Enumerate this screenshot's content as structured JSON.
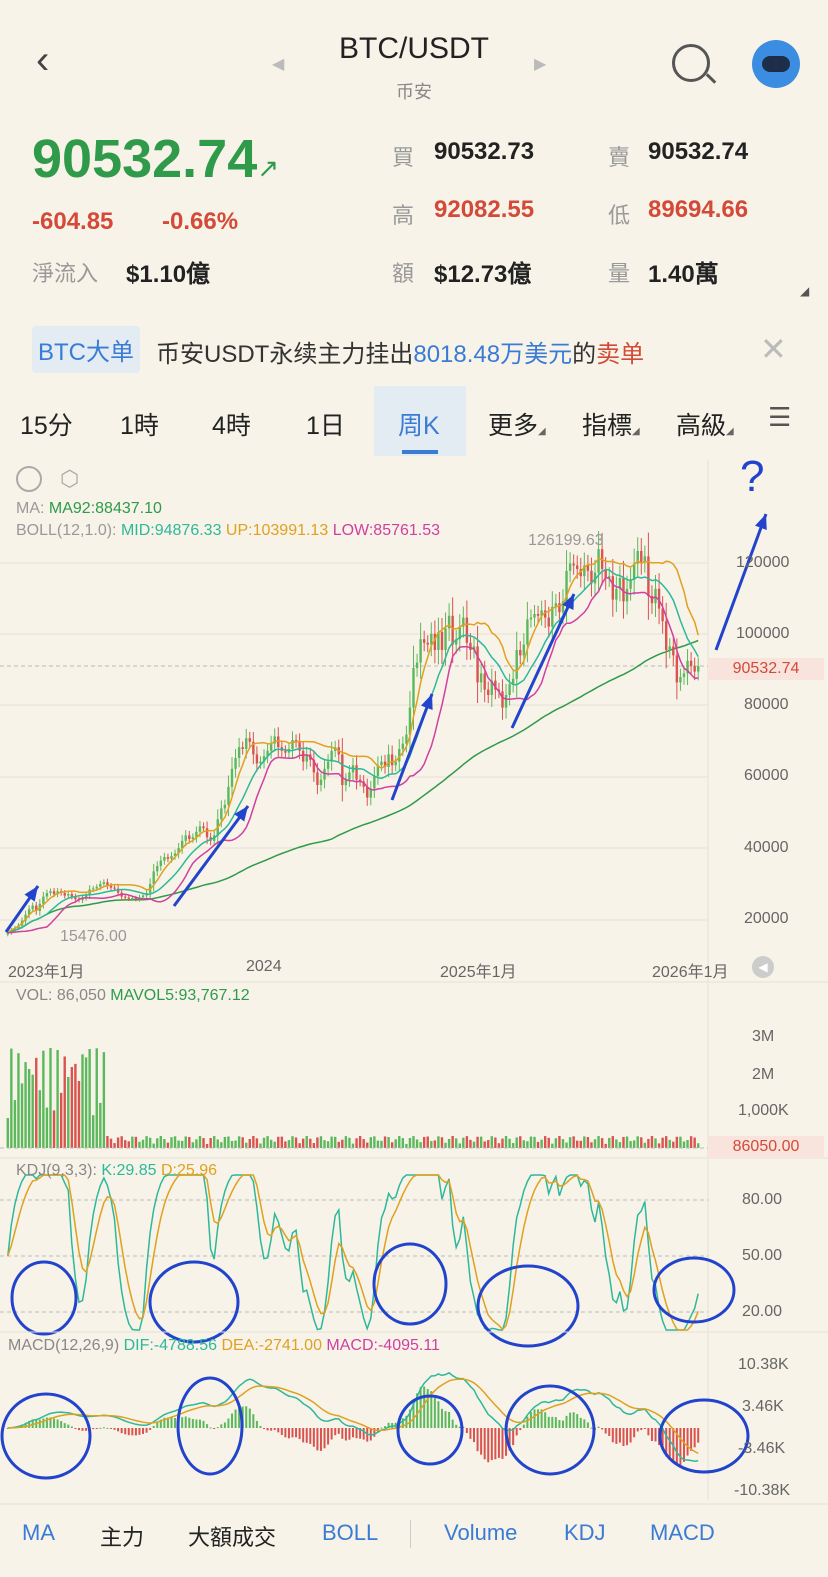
{
  "header": {
    "title": "BTC/USDT",
    "subtitle": "币安"
  },
  "ticker": {
    "price": "90532.74",
    "change": "-604.85",
    "change_pct": "-0.66%",
    "net_inflow_label": "淨流入",
    "net_inflow": "$1.10億",
    "bid_label": "買",
    "bid": "90532.73",
    "ask_label": "賣",
    "ask": "90532.74",
    "high_label": "高",
    "high": "92082.55",
    "low_label": "低",
    "low": "89694.66",
    "amount_label": "額",
    "amount": "$12.73億",
    "volume_label": "量",
    "volume": "1.40萬"
  },
  "banner": {
    "tag": "BTC大单",
    "text_a": "币安USDT永续主力挂出",
    "amount": "8018.48万美元",
    "text_b": "的",
    "side": "卖单"
  },
  "tabs": [
    "15分",
    "1時",
    "4時",
    "1日",
    "周K",
    "更多",
    "指標",
    "高級"
  ],
  "active_tab": "周K",
  "indicators": {
    "ma": {
      "label": "MA:",
      "value": "MA92:88437.10"
    },
    "boll": {
      "label": "BOLL(12,1.0):",
      "mid": "MID:94876.33",
      "up": "UP:103991.13",
      "low": "LOW:85761.53"
    },
    "vol": {
      "label": "VOL: 86,050",
      "mavol": "MAVOL5:93,767.12"
    },
    "kdj": {
      "label": "KDJ(9,3,3):",
      "k": "K:29.85",
      "d": "D:25.96"
    },
    "macd": {
      "label": "MACD(12,26,9)",
      "dif": "DIF:-4788.56",
      "dea": "DEA:-2741.00",
      "macd": "MACD:-4095.11"
    }
  },
  "bottom_tabs": [
    "MA",
    "主力",
    "大額成交",
    "BOLL",
    "Volume",
    "KDJ",
    "MACD"
  ],
  "chart_data": {
    "type": "candlestick",
    "price_axis": [
      "120000",
      "100000",
      "80000",
      "60000",
      "40000",
      "20000"
    ],
    "current_price_label": "90532.74",
    "high_label": "126199.63",
    "low_label": "15476.00",
    "x_labels": [
      "2023年1月",
      "2024",
      "2025年1月",
      "2026年1月"
    ],
    "annotation": "?",
    "weekly_close": [
      16500,
      17200,
      17800,
      18500,
      19800,
      21500,
      23000,
      24000,
      22500,
      24500,
      26500,
      27500,
      28000,
      27200,
      28000,
      27500,
      26800,
      27200,
      26500,
      25800,
      25500,
      26200,
      27000,
      28500,
      28800,
      29200,
      30000,
      30500,
      29500,
      29000,
      28700,
      27600,
      26500,
      26200,
      25900,
      26100,
      25800,
      26300,
      26800,
      27500,
      30000,
      33500,
      35000,
      36500,
      37500,
      37000,
      37800,
      38500,
      40000,
      42000,
      43500,
      42500,
      43000,
      44500,
      46000,
      45500,
      43000,
      42000,
      43500,
      48000,
      51000,
      52000,
      57000,
      62000,
      65000,
      68000,
      67500,
      70500,
      69500,
      66000,
      63500,
      64000,
      65500,
      67000,
      69000,
      71000,
      68000,
      67000,
      66500,
      67500,
      70000,
      69500,
      67000,
      64000,
      66000,
      64500,
      61000,
      57500,
      59000,
      62000,
      64000,
      67000,
      68000,
      66000,
      57500,
      59000,
      61000,
      63000,
      59000,
      58500,
      57000,
      54000,
      56500,
      60000,
      63000,
      64000,
      62500,
      66000,
      63000,
      64000,
      67500,
      69000,
      71500,
      79000,
      90000,
      91500,
      98000,
      97000,
      96500,
      99500,
      95000,
      100000,
      95000,
      101000,
      104500,
      96500,
      98000,
      101500,
      104000,
      97000,
      95000,
      96000,
      86000,
      88500,
      84000,
      82500,
      86500,
      84000,
      83500,
      79000,
      82500,
      85500,
      87000,
      95000,
      93500,
      96500,
      103500,
      104000,
      105000,
      104500,
      106000,
      104000,
      101500,
      107000,
      108000,
      105500,
      108500,
      117000,
      119000,
      118500,
      117500,
      115500,
      118500,
      117000,
      113500,
      116500,
      123000,
      117500,
      115000,
      115500,
      109000,
      112000,
      115000,
      108500,
      112000,
      114500,
      119000,
      122500,
      119500,
      121000,
      110000,
      108000,
      112000,
      106500,
      103000,
      95000,
      96000,
      93500,
      86000,
      87500,
      88500,
      92000,
      90500,
      89000,
      90532
    ]
  }
}
